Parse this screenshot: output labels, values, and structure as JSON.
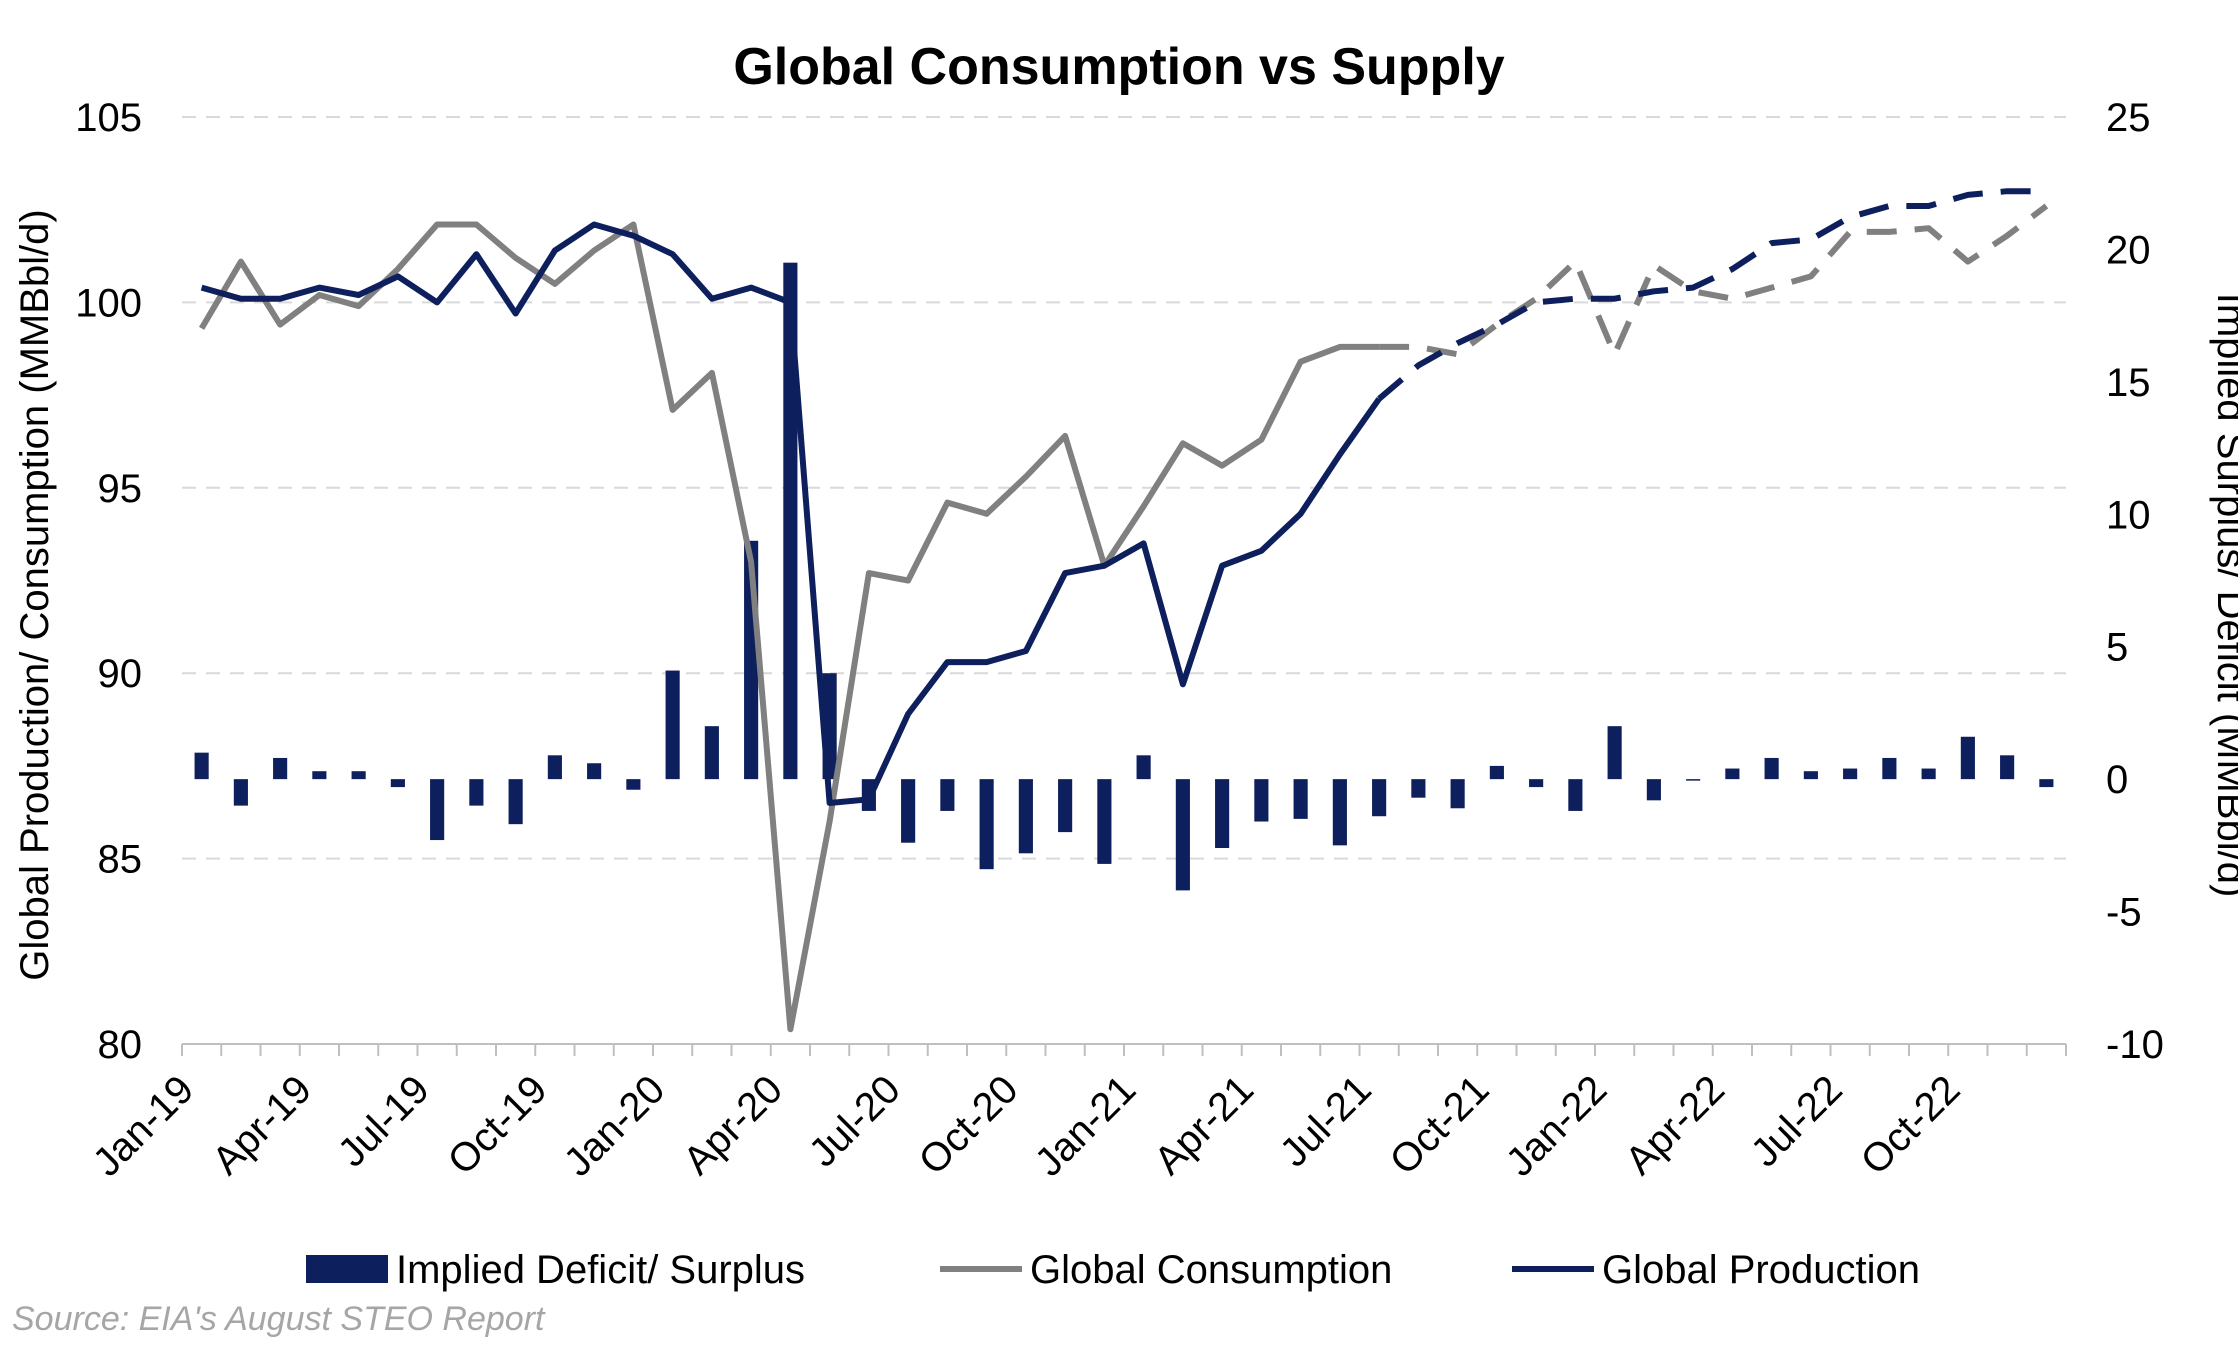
{
  "chart_data": {
    "type": "bar+line",
    "title": "Global Consumption vs Supply",
    "source": "Source: EIA's August STEO Report",
    "left_axis": {
      "label": "Global Production/ Consumption (MMBbl/d)",
      "min": 80,
      "max": 105,
      "ticks": [
        80,
        85,
        90,
        95,
        100,
        105
      ]
    },
    "right_axis": {
      "label": "Implied Surplus/ Deficit (MMBbl/d)",
      "min": -10,
      "max": 25,
      "ticks": [
        -10,
        -5,
        0,
        5,
        10,
        15,
        20,
        25
      ]
    },
    "grid": true,
    "legend_position": "bottom",
    "x_tick_labels": [
      "Jan-19",
      "Apr-19",
      "Jul-19",
      "Oct-19",
      "Jan-20",
      "Apr-20",
      "Jul-20",
      "Oct-20",
      "Jan-21",
      "Apr-21",
      "Jul-21",
      "Oct-21",
      "Jan-22",
      "Apr-22",
      "Jul-22",
      "Oct-22"
    ],
    "months": [
      "Jan-19",
      "Feb-19",
      "Mar-19",
      "Apr-19",
      "May-19",
      "Jun-19",
      "Jul-19",
      "Aug-19",
      "Sep-19",
      "Oct-19",
      "Nov-19",
      "Dec-19",
      "Jan-20",
      "Feb-20",
      "Mar-20",
      "Apr-20",
      "May-20",
      "Jun-20",
      "Jul-20",
      "Aug-20",
      "Sep-20",
      "Oct-20",
      "Nov-20",
      "Dec-20",
      "Jan-21",
      "Feb-21",
      "Mar-21",
      "Apr-21",
      "May-21",
      "Jun-21",
      "Jul-21",
      "Aug-21",
      "Sep-21",
      "Oct-21",
      "Nov-21",
      "Dec-21",
      "Jan-22",
      "Feb-22",
      "Mar-22",
      "Apr-22",
      "May-22",
      "Jun-22",
      "Jul-22",
      "Aug-22",
      "Sep-22",
      "Oct-22",
      "Nov-22",
      "Dec-22"
    ],
    "forecast_start": "Aug-21",
    "series": [
      {
        "name": "Implied Deficit/ Surplus",
        "kind": "bar",
        "axis": "right",
        "color": "#0d1f5c",
        "values": [
          1.0,
          -1.0,
          0.8,
          0.3,
          0.3,
          -0.3,
          -2.3,
          -1.0,
          -1.7,
          0.9,
          0.6,
          -0.4,
          4.1,
          2.0,
          9.0,
          19.5,
          4.0,
          -1.2,
          -2.4,
          -1.2,
          -3.4,
          -2.8,
          -2.0,
          -3.2,
          0.9,
          -4.2,
          -2.6,
          -1.6,
          -1.5,
          -2.5,
          -1.4,
          -0.7,
          -1.1,
          0.5,
          -0.3,
          -1.2,
          2.0,
          -0.8,
          0.0,
          0.4,
          0.8,
          0.3,
          0.4,
          0.8,
          0.4,
          1.6,
          0.9,
          -0.3
        ]
      },
      {
        "name": "Global Consumption",
        "kind": "line",
        "axis": "left",
        "color": "#808080",
        "values": [
          99.3,
          101.1,
          99.4,
          100.2,
          99.9,
          100.9,
          102.1,
          102.1,
          101.2,
          100.5,
          101.4,
          102.1,
          97.1,
          98.1,
          93.0,
          80.4,
          86.0,
          92.7,
          92.5,
          94.6,
          94.3,
          95.3,
          96.4,
          92.9,
          94.5,
          96.2,
          95.6,
          96.3,
          98.4,
          98.8,
          98.8,
          98.8,
          98.6,
          99.4,
          100.1,
          101.1,
          98.6,
          101.0,
          100.3,
          100.1,
          100.4,
          100.7,
          101.9,
          101.9,
          102.0,
          101.1,
          101.8,
          102.6
        ]
      },
      {
        "name": "Global Production",
        "kind": "line",
        "axis": "left",
        "color": "#0d1f5c",
        "values": [
          100.4,
          100.1,
          100.1,
          100.4,
          100.2,
          100.7,
          100.0,
          101.3,
          99.7,
          101.4,
          102.1,
          101.8,
          101.3,
          100.1,
          100.4,
          100.0,
          86.5,
          86.6,
          88.9,
          90.3,
          90.3,
          90.6,
          92.7,
          92.9,
          93.5,
          89.7,
          92.9,
          93.3,
          94.3,
          95.9,
          97.4,
          98.3,
          98.9,
          99.4,
          100.0,
          100.1,
          100.1,
          100.3,
          100.4,
          100.9,
          101.6,
          101.7,
          102.3,
          102.6,
          102.6,
          102.9,
          103.0,
          103.0
        ]
      }
    ]
  }
}
